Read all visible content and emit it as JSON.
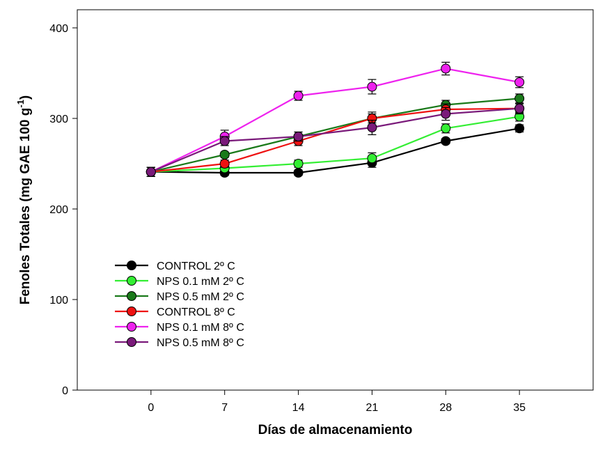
{
  "chart_data": {
    "type": "line",
    "title": "",
    "xlabel": "Días de almacenamiento",
    "ylabel_main": "Fenoles Totales (mg GAE 100 g",
    "ylabel_sup": "-1",
    "ylabel_end": ")",
    "x": [
      0,
      7,
      14,
      21,
      28,
      35
    ],
    "x_tick_labels": [
      "0",
      "7",
      "14",
      "21",
      "28",
      "35"
    ],
    "xlim": [
      -7,
      42
    ],
    "ylim": [
      0,
      420
    ],
    "y_ticks": [
      0,
      100,
      200,
      300,
      400
    ],
    "y_tick_labels": [
      "0",
      "100",
      "200",
      "300",
      "400"
    ],
    "grid": false,
    "legend_position": "lower-left",
    "series": [
      {
        "name": "CONTROL 2º C",
        "color": "#000000",
        "values": [
          241,
          240,
          240,
          251,
          275,
          289
        ],
        "errors": [
          5,
          3,
          3,
          5,
          3,
          4
        ]
      },
      {
        "name": "NPS 0.1 mM 2º C",
        "color": "#33ee33",
        "values": [
          241,
          245,
          250,
          256,
          289,
          302
        ],
        "errors": [
          5,
          3,
          4,
          6,
          5,
          5
        ]
      },
      {
        "name": "NPS 0.5 mM 2º C",
        "color": "#1a7a1a",
        "values": [
          241,
          260,
          280,
          300,
          315,
          322
        ],
        "errors": [
          5,
          3,
          5,
          5,
          5,
          5
        ]
      },
      {
        "name": "CONTROL 8º C",
        "color": "#ee1111",
        "values": [
          241,
          250,
          275,
          300,
          310,
          311
        ],
        "errors": [
          5,
          4,
          5,
          7,
          6,
          5
        ]
      },
      {
        "name": "NPS 0.1 mM 8º C",
        "color": "#ee22ee",
        "values": [
          241,
          280,
          325,
          335,
          355,
          340
        ],
        "errors": [
          5,
          7,
          5,
          8,
          7,
          6
        ]
      },
      {
        "name": "NPS 0.5 mM 8º C",
        "color": "#7a1a7a",
        "values": [
          241,
          275,
          280,
          290,
          305,
          311
        ],
        "errors": [
          5,
          5,
          5,
          8,
          7,
          6
        ]
      }
    ]
  }
}
